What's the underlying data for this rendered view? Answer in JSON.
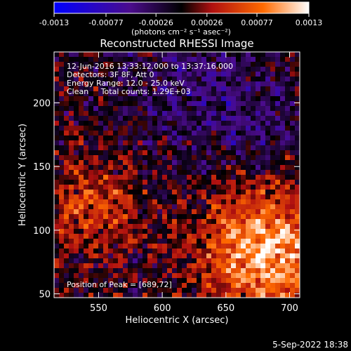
{
  "colorbar": {
    "ticks": [
      "-0.0013",
      "-0.00077",
      "-0.00026",
      "0.00026",
      "0.00077",
      "0.0013"
    ],
    "tick_values": [
      -0.0013,
      -0.00077,
      -0.00026,
      0.00026,
      0.00077,
      0.0013
    ],
    "range": [
      -0.0013,
      0.0013
    ],
    "units_label": "(photons cm⁻² s⁻¹ asec⁻²)",
    "palette": [
      "#0000ff",
      "#4b0c8c",
      "#000000",
      "#b01010",
      "#ff6a00",
      "#ffffff"
    ]
  },
  "chart_data": {
    "type": "heatmap",
    "title": "Reconstructed RHESSI Image",
    "xlabel": "Heliocentric X (arcsec)",
    "ylabel": "Heliocentric Y (arcsec)",
    "xlim": [
      515,
      708
    ],
    "ylim": [
      47,
      240
    ],
    "xticks": [
      550,
      600,
      650,
      700
    ],
    "yticks": [
      50,
      100,
      150,
      200
    ],
    "annotations": [
      "12-Jun-2016 13:33:12.000 to 13:37:16.000",
      "Detectors: 3F 8F, Att 0",
      "Energy Range: 12.0 - 25.0 keV",
      "Clean     Total counts: 1.29E+03"
    ],
    "peak_label": "Position of Peak = [689,72]",
    "peak": [
      689,
      72
    ]
  },
  "footer": {
    "timestamp": "5-Sep-2022 18:38"
  }
}
